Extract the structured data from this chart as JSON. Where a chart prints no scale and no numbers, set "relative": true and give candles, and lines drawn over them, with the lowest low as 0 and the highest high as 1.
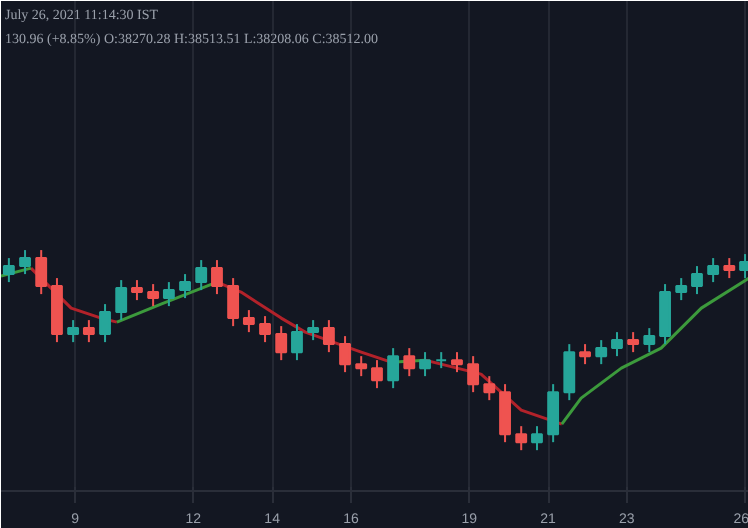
{
  "chart_data": {
    "type": "candlestick",
    "relative": true,
    "grid": "x",
    "xlim": [
      7.12,
      26.1
    ],
    "xticks": [
      9,
      12,
      14,
      16,
      19,
      21,
      23,
      26
    ],
    "annotations": [
      "July 26, 2021 11:14:30 IST",
      "130.96 (+8.85%) O:38270.28 H:38513.51 L:38208.06 C:38512.00"
    ],
    "x": [
      7.32,
      7.73,
      8.14,
      8.54,
      8.95,
      9.35,
      9.76,
      10.17,
      10.57,
      10.98,
      11.38,
      11.79,
      12.2,
      12.6,
      13.01,
      13.41,
      13.82,
      14.23,
      14.63,
      15.04,
      15.44,
      15.85,
      16.26,
      16.66,
      17.07,
      17.48,
      17.88,
      18.29,
      18.69,
      19.1,
      19.51,
      19.91,
      20.32,
      20.72,
      21.13,
      21.54,
      21.94,
      22.35,
      22.75,
      23.16,
      23.57,
      23.97,
      24.38,
      24.78,
      25.19,
      25.6,
      26.0
    ],
    "ohlc": [
      [
        0.88,
        0.96,
        0.84,
        0.92
      ],
      [
        0.92,
        1.0,
        0.88,
        0.96
      ],
      [
        0.96,
        1.0,
        0.78,
        0.82
      ],
      [
        0.82,
        0.86,
        0.54,
        0.58
      ],
      [
        0.58,
        0.65,
        0.54,
        0.61
      ],
      [
        0.61,
        0.65,
        0.54,
        0.58
      ],
      [
        0.58,
        0.73,
        0.54,
        0.69
      ],
      [
        0.69,
        0.85,
        0.65,
        0.81
      ],
      [
        0.81,
        0.85,
        0.75,
        0.79
      ],
      [
        0.79,
        0.83,
        0.72,
        0.76
      ],
      [
        0.76,
        0.84,
        0.72,
        0.8
      ],
      [
        0.8,
        0.88,
        0.76,
        0.84
      ],
      [
        0.84,
        0.95,
        0.8,
        0.91
      ],
      [
        0.91,
        0.95,
        0.78,
        0.82
      ],
      [
        0.82,
        0.86,
        0.62,
        0.66
      ],
      [
        0.66,
        0.7,
        0.59,
        0.63
      ],
      [
        0.63,
        0.67,
        0.54,
        0.58
      ],
      [
        0.58,
        0.62,
        0.45,
        0.49
      ],
      [
        0.49,
        0.63,
        0.45,
        0.59
      ],
      [
        0.59,
        0.65,
        0.55,
        0.61
      ],
      [
        0.61,
        0.65,
        0.49,
        0.53
      ],
      [
        0.53,
        0.57,
        0.39,
        0.43
      ],
      [
        0.43,
        0.47,
        0.37,
        0.41
      ],
      [
        0.41,
        0.45,
        0.31,
        0.35
      ],
      [
        0.35,
        0.51,
        0.31,
        0.47
      ],
      [
        0.47,
        0.51,
        0.37,
        0.41
      ],
      [
        0.41,
        0.49,
        0.37,
        0.45
      ],
      [
        0.45,
        0.49,
        0.41,
        0.45
      ],
      [
        0.45,
        0.49,
        0.39,
        0.43
      ],
      [
        0.43,
        0.47,
        0.29,
        0.33
      ],
      [
        0.33,
        0.37,
        0.25,
        0.29
      ],
      [
        0.29,
        0.33,
        0.04,
        0.08
      ],
      [
        0.08,
        0.12,
        0.0,
        0.04
      ],
      [
        0.04,
        0.12,
        0.0,
        0.08
      ],
      [
        0.08,
        0.33,
        0.04,
        0.29
      ],
      [
        0.29,
        0.53,
        0.25,
        0.49
      ],
      [
        0.49,
        0.53,
        0.43,
        0.47
      ],
      [
        0.47,
        0.55,
        0.43,
        0.51
      ],
      [
        0.51,
        0.59,
        0.47,
        0.55
      ],
      [
        0.55,
        0.59,
        0.49,
        0.53
      ],
      [
        0.53,
        0.61,
        0.49,
        0.57
      ],
      [
        0.57,
        0.83,
        0.53,
        0.79
      ],
      [
        0.79,
        0.86,
        0.75,
        0.82
      ],
      [
        0.82,
        0.92,
        0.78,
        0.88
      ],
      [
        0.88,
        0.96,
        0.84,
        0.92
      ],
      [
        0.92,
        0.96,
        0.86,
        0.9
      ],
      [
        0.9,
        0.98,
        0.86,
        0.94
      ]
    ],
    "colors": [
      "#26a69a",
      "#26a69a",
      "#ef5350",
      "#ef5350",
      "#26a69a",
      "#ef5350",
      "#26a69a",
      "#26a69a",
      "#ef5350",
      "#ef5350",
      "#26a69a",
      "#26a69a",
      "#26a69a",
      "#ef5350",
      "#ef5350",
      "#ef5350",
      "#ef5350",
      "#ef5350",
      "#26a69a",
      "#26a69a",
      "#ef5350",
      "#ef5350",
      "#ef5350",
      "#ef5350",
      "#26a69a",
      "#ef5350",
      "#26a69a",
      "#26a69a",
      "#ef5350",
      "#ef5350",
      "#ef5350",
      "#ef5350",
      "#ef5350",
      "#26a69a",
      "#26a69a",
      "#26a69a",
      "#ef5350",
      "#26a69a",
      "#26a69a",
      "#ef5350",
      "#26a69a",
      "#26a69a",
      "#26a69a",
      "#26a69a",
      "#26a69a",
      "#ef5350",
      "#26a69a"
    ],
    "series": [
      {
        "type": "line",
        "color": "#b2222a",
        "x": [
          7.88,
          8.9,
          9.66,
          10.06,
          10.5,
          12.6,
          13.21,
          14.23,
          14.84,
          16.26,
          17.02,
          17.4,
          17.88,
          19.3,
          20.32,
          21.35
        ],
        "values": [
          0.91,
          0.71,
          0.66,
          0.64,
          null,
          0.84,
          0.79,
          0.66,
          0.59,
          0.49,
          0.44,
          null,
          0.45,
          0.38,
          0.2,
          0.13
        ]
      },
      {
        "type": "line",
        "color": "#3c9a3c",
        "x": [
          7.12,
          7.88,
          8.5,
          10.06,
          11.18,
          12.6,
          13.0,
          17.02,
          17.88,
          19.0,
          21.35,
          21.84,
          22.86,
          23.87,
          24.89,
          26.1
        ],
        "values": [
          0.87,
          0.91,
          null,
          0.64,
          0.73,
          0.84,
          null,
          0.44,
          0.45,
          null,
          0.13,
          0.26,
          0.41,
          0.51,
          0.71,
          0.86
        ]
      }
    ]
  }
}
